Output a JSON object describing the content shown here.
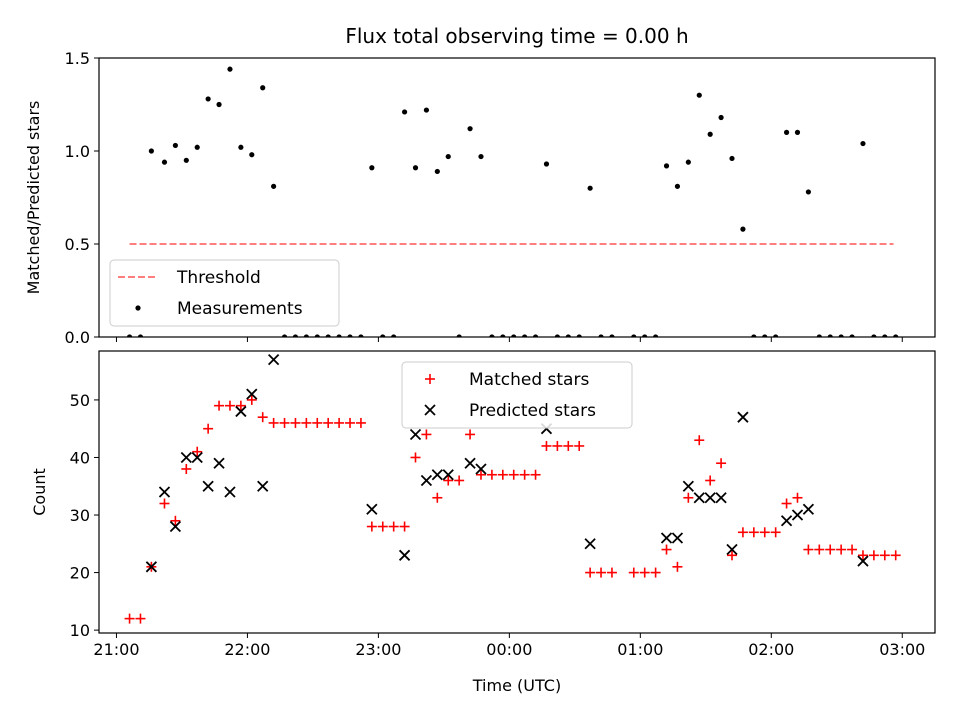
{
  "chart_data": [
    {
      "type": "scatter",
      "title": "Flux total observing time = 0.00 h",
      "xlabel": "",
      "ylabel": "Matched/Predicted stars",
      "xlim": [
        "20:52",
        "03:15"
      ],
      "ylim": [
        0,
        1.5
      ],
      "y_ticks": [
        "0.0",
        "0.5",
        "1.0",
        "1.5"
      ],
      "x_ticks": [
        "21:00",
        "22:00",
        "23:00",
        "00:00",
        "01:00",
        "02:00",
        "03:00"
      ],
      "legend_position": "lower-left",
      "series": [
        {
          "name": "Threshold",
          "style": "dashed-line",
          "color": "#ff7f7f",
          "points": [
            [
              "21:06",
              0.5
            ],
            [
              "02:56",
              0.5
            ]
          ]
        },
        {
          "name": "Measurements",
          "style": "dot",
          "color": "#000000",
          "points": [
            [
              "21:06",
              0.0
            ],
            [
              "21:11",
              0.0
            ],
            [
              "21:16",
              1.0
            ],
            [
              "21:22",
              0.94
            ],
            [
              "21:27",
              1.03
            ],
            [
              "21:32",
              0.95
            ],
            [
              "21:37",
              1.02
            ],
            [
              "21:42",
              1.28
            ],
            [
              "21:47",
              1.25
            ],
            [
              "21:52",
              1.44
            ],
            [
              "21:57",
              1.02
            ],
            [
              "22:02",
              0.98
            ],
            [
              "22:07",
              1.34
            ],
            [
              "22:12",
              0.81
            ],
            [
              "22:17",
              0.0
            ],
            [
              "22:22",
              0.0
            ],
            [
              "22:27",
              0.0
            ],
            [
              "22:32",
              0.0
            ],
            [
              "22:37",
              0.0
            ],
            [
              "22:42",
              0.0
            ],
            [
              "22:47",
              0.0
            ],
            [
              "22:52",
              0.0
            ],
            [
              "22:57",
              0.91
            ],
            [
              "23:02",
              0.0
            ],
            [
              "23:07",
              0.0
            ],
            [
              "23:12",
              1.21
            ],
            [
              "23:17",
              0.91
            ],
            [
              "23:22",
              1.22
            ],
            [
              "23:27",
              0.89
            ],
            [
              "23:32",
              0.97
            ],
            [
              "23:37",
              0.0
            ],
            [
              "23:42",
              1.12
            ],
            [
              "23:47",
              0.97
            ],
            [
              "23:52",
              0.0
            ],
            [
              "23:57",
              0.0
            ],
            [
              "00:02",
              0.0
            ],
            [
              "00:07",
              0.0
            ],
            [
              "00:12",
              0.0
            ],
            [
              "00:17",
              0.93
            ],
            [
              "00:22",
              0.0
            ],
            [
              "00:27",
              0.0
            ],
            [
              "00:32",
              0.0
            ],
            [
              "00:37",
              0.8
            ],
            [
              "00:42",
              0.0
            ],
            [
              "00:47",
              0.0
            ],
            [
              "00:57",
              0.0
            ],
            [
              "01:02",
              0.0
            ],
            [
              "01:07",
              0.0
            ],
            [
              "01:12",
              0.92
            ],
            [
              "01:17",
              0.81
            ],
            [
              "01:22",
              0.94
            ],
            [
              "01:27",
              1.3
            ],
            [
              "01:32",
              1.09
            ],
            [
              "01:37",
              1.18
            ],
            [
              "01:42",
              0.96
            ],
            [
              "01:47",
              0.58
            ],
            [
              "01:52",
              0.0
            ],
            [
              "01:57",
              0.0
            ],
            [
              "02:02",
              0.0
            ],
            [
              "02:07",
              1.1
            ],
            [
              "02:12",
              1.1
            ],
            [
              "02:17",
              0.78
            ],
            [
              "02:22",
              0.0
            ],
            [
              "02:27",
              0.0
            ],
            [
              "02:32",
              0.0
            ],
            [
              "02:37",
              0.0
            ],
            [
              "02:42",
              1.04
            ],
            [
              "02:47",
              0.0
            ],
            [
              "02:52",
              0.0
            ],
            [
              "02:57",
              0.0
            ]
          ]
        }
      ]
    },
    {
      "type": "scatter",
      "title": "",
      "xlabel": "Time (UTC)",
      "ylabel": "Count",
      "xlim": [
        "20:52",
        "03:15"
      ],
      "ylim": [
        9.5,
        58.5
      ],
      "y_ticks": [
        "10",
        "20",
        "30",
        "40",
        "50"
      ],
      "x_ticks": [
        "21:00",
        "22:00",
        "23:00",
        "00:00",
        "01:00",
        "02:00",
        "03:00"
      ],
      "legend_position": "upper-center",
      "series": [
        {
          "name": "Matched stars",
          "style": "plus",
          "color": "#ff0000",
          "points": [
            [
              "21:06",
              12
            ],
            [
              "21:11",
              12
            ],
            [
              "21:16",
              21
            ],
            [
              "21:22",
              32
            ],
            [
              "21:27",
              29
            ],
            [
              "21:32",
              38
            ],
            [
              "21:37",
              41
            ],
            [
              "21:42",
              45
            ],
            [
              "21:47",
              49
            ],
            [
              "21:52",
              49
            ],
            [
              "21:57",
              49
            ],
            [
              "22:02",
              50
            ],
            [
              "22:07",
              47
            ],
            [
              "22:12",
              46
            ],
            [
              "22:17",
              46
            ],
            [
              "22:22",
              46
            ],
            [
              "22:27",
              46
            ],
            [
              "22:32",
              46
            ],
            [
              "22:37",
              46
            ],
            [
              "22:42",
              46
            ],
            [
              "22:47",
              46
            ],
            [
              "22:52",
              46
            ],
            [
              "22:57",
              28
            ],
            [
              "23:02",
              28
            ],
            [
              "23:07",
              28
            ],
            [
              "23:12",
              28
            ],
            [
              "23:17",
              40
            ],
            [
              "23:22",
              44
            ],
            [
              "23:27",
              33
            ],
            [
              "23:32",
              36
            ],
            [
              "23:37",
              36
            ],
            [
              "23:42",
              44
            ],
            [
              "23:47",
              37
            ],
            [
              "23:52",
              37
            ],
            [
              "23:57",
              37
            ],
            [
              "00:02",
              37
            ],
            [
              "00:07",
              37
            ],
            [
              "00:12",
              37
            ],
            [
              "00:17",
              42
            ],
            [
              "00:22",
              42
            ],
            [
              "00:27",
              42
            ],
            [
              "00:32",
              42
            ],
            [
              "00:37",
              20
            ],
            [
              "00:42",
              20
            ],
            [
              "00:47",
              20
            ],
            [
              "00:57",
              20
            ],
            [
              "01:02",
              20
            ],
            [
              "01:07",
              20
            ],
            [
              "01:12",
              24
            ],
            [
              "01:17",
              21
            ],
            [
              "01:22",
              33
            ],
            [
              "01:27",
              43
            ],
            [
              "01:32",
              36
            ],
            [
              "01:37",
              39
            ],
            [
              "01:42",
              23
            ],
            [
              "01:47",
              27
            ],
            [
              "01:52",
              27
            ],
            [
              "01:57",
              27
            ],
            [
              "02:02",
              27
            ],
            [
              "02:07",
              32
            ],
            [
              "02:12",
              33
            ],
            [
              "02:17",
              24
            ],
            [
              "02:22",
              24
            ],
            [
              "02:27",
              24
            ],
            [
              "02:32",
              24
            ],
            [
              "02:37",
              24
            ],
            [
              "02:42",
              23
            ],
            [
              "02:47",
              23
            ],
            [
              "02:52",
              23
            ],
            [
              "02:57",
              23
            ]
          ]
        },
        {
          "name": "Predicted stars",
          "style": "x",
          "color": "#000000",
          "points": [
            [
              "21:16",
              21
            ],
            [
              "21:22",
              34
            ],
            [
              "21:27",
              28
            ],
            [
              "21:32",
              40
            ],
            [
              "21:37",
              40
            ],
            [
              "21:42",
              35
            ],
            [
              "21:47",
              39
            ],
            [
              "21:52",
              34
            ],
            [
              "21:57",
              48
            ],
            [
              "22:02",
              51
            ],
            [
              "22:07",
              35
            ],
            [
              "22:12",
              57
            ],
            [
              "22:57",
              31
            ],
            [
              "23:12",
              23
            ],
            [
              "23:17",
              44
            ],
            [
              "23:22",
              36
            ],
            [
              "23:27",
              37
            ],
            [
              "23:32",
              37
            ],
            [
              "23:42",
              39
            ],
            [
              "23:47",
              38
            ],
            [
              "00:17",
              45
            ],
            [
              "00:37",
              25
            ],
            [
              "01:12",
              26
            ],
            [
              "01:17",
              26
            ],
            [
              "01:22",
              35
            ],
            [
              "01:27",
              33
            ],
            [
              "01:32",
              33
            ],
            [
              "01:37",
              33
            ],
            [
              "01:42",
              24
            ],
            [
              "01:47",
              47
            ],
            [
              "02:07",
              29
            ],
            [
              "02:12",
              30
            ],
            [
              "02:17",
              31
            ],
            [
              "02:42",
              22
            ]
          ]
        }
      ]
    }
  ]
}
